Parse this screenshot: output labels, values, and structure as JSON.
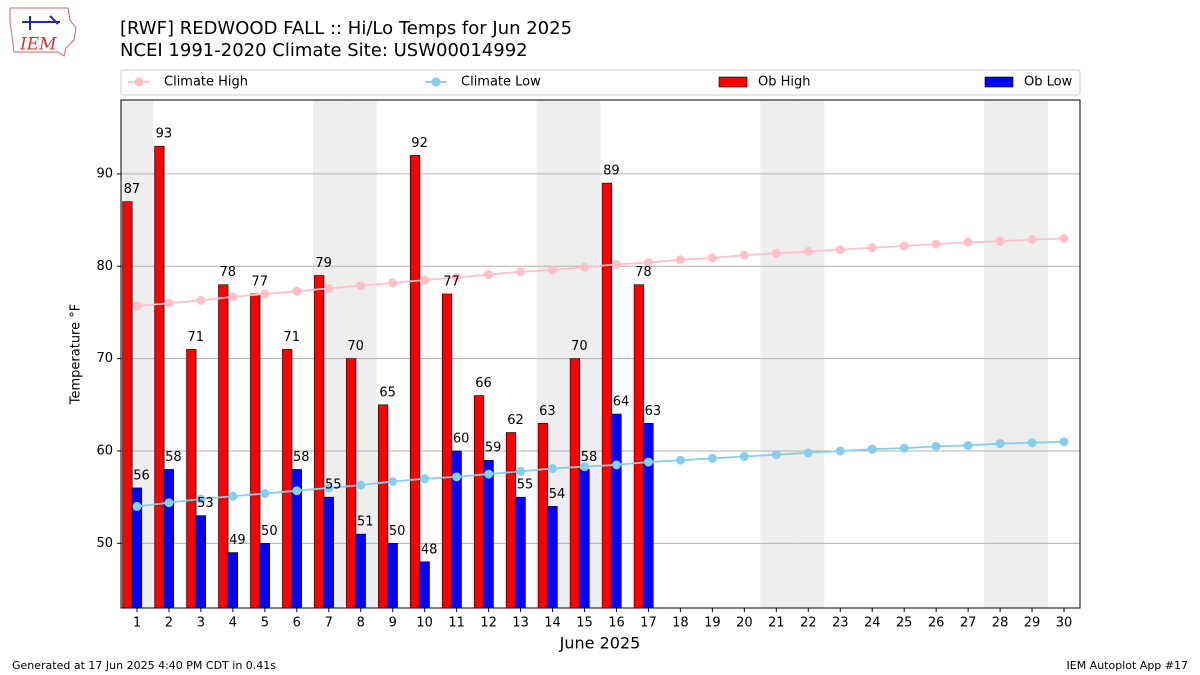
{
  "chart_data": {
    "type": "bar",
    "title": "[RWF] REDWOOD FALL :: Hi/Lo Temps for Jun 2025",
    "subtitle": "NCEI 1991-2020 Climate Site: USW00014992",
    "xlabel": "June 2025",
    "ylabel": "Temperature °F",
    "logo": "IEM",
    "footer_left": "Generated at 17 Jun 2025 4:40 PM CDT in 0.41s",
    "footer_right": "IEM Autoplot App #17",
    "x": [
      1,
      2,
      3,
      4,
      5,
      6,
      7,
      8,
      9,
      10,
      11,
      12,
      13,
      14,
      15,
      16,
      17,
      18,
      19,
      20,
      21,
      22,
      23,
      24,
      25,
      26,
      27,
      28,
      29,
      30
    ],
    "xlim": [
      0.5,
      30.5
    ],
    "xticks": [
      1,
      2,
      3,
      4,
      5,
      6,
      7,
      8,
      9,
      10,
      11,
      12,
      13,
      14,
      15,
      16,
      17,
      18,
      19,
      20,
      21,
      22,
      23,
      24,
      25,
      26,
      27,
      28,
      29,
      30
    ],
    "ylim": [
      43,
      98
    ],
    "yticks": [
      50,
      60,
      70,
      80,
      90
    ],
    "grid": true,
    "shaded_days": [
      1,
      7,
      8,
      14,
      15,
      21,
      22,
      28,
      29
    ],
    "series": [
      {
        "name": "Climate High",
        "type": "line",
        "color": "#ffc0cb",
        "values": [
          75.7,
          76.0,
          76.3,
          76.7,
          77.0,
          77.3,
          77.6,
          77.9,
          78.2,
          78.5,
          78.8,
          79.1,
          79.4,
          79.6,
          79.9,
          80.2,
          80.4,
          80.7,
          80.9,
          81.2,
          81.4,
          81.6,
          81.8,
          82.0,
          82.2,
          82.4,
          82.6,
          82.7,
          82.9,
          83.0
        ]
      },
      {
        "name": "Climate Low",
        "type": "line",
        "color": "#87ceeb",
        "values": [
          54.0,
          54.4,
          54.8,
          55.1,
          55.4,
          55.7,
          56.0,
          56.3,
          56.7,
          57.0,
          57.2,
          57.5,
          57.8,
          58.1,
          58.3,
          58.5,
          58.8,
          59.0,
          59.2,
          59.4,
          59.6,
          59.8,
          60.0,
          60.2,
          60.3,
          60.5,
          60.6,
          60.8,
          60.9,
          61.0
        ]
      },
      {
        "name": "Ob High",
        "type": "bar",
        "color": "#ff0000",
        "values": [
          87,
          93,
          71,
          78,
          77,
          71,
          79,
          70,
          65,
          92,
          77,
          66,
          62,
          63,
          70,
          89,
          78,
          null,
          null,
          null,
          null,
          null,
          null,
          null,
          null,
          null,
          null,
          null,
          null,
          null
        ]
      },
      {
        "name": "Ob Low",
        "type": "bar",
        "color": "#0000ff",
        "values": [
          56,
          58,
          53,
          49,
          50,
          58,
          55,
          51,
          50,
          48,
          60,
          59,
          55,
          54,
          58,
          64,
          63,
          null,
          null,
          null,
          null,
          null,
          null,
          null,
          null,
          null,
          null,
          null,
          null,
          null
        ]
      }
    ]
  }
}
